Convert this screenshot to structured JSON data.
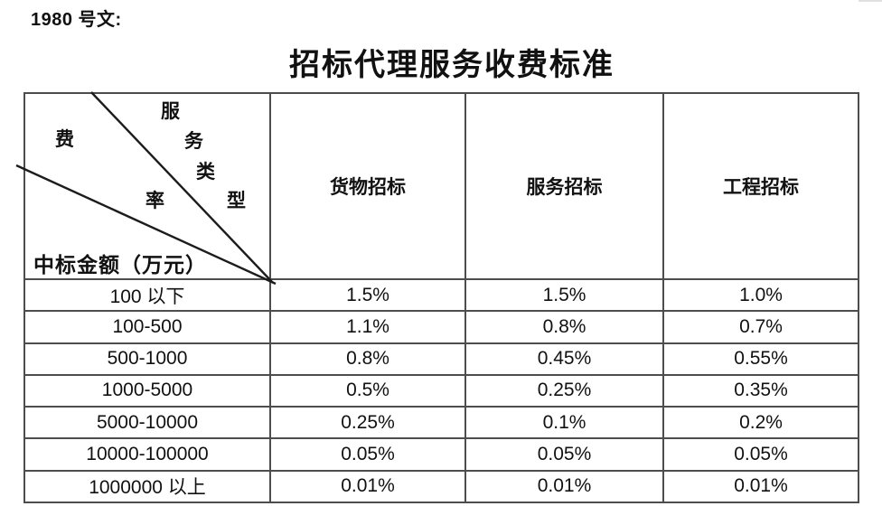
{
  "page": {
    "doc_label": "1980 号文:",
    "title": "招标代理服务收费标准"
  },
  "table": {
    "corner": {
      "fee_char": "费",
      "rate_char": "率",
      "type_chars": [
        "服",
        "务",
        "类",
        "型"
      ],
      "row_axis_label": "中标金额（万元）"
    },
    "columns": [
      "货物招标",
      "服务招标",
      "工程招标"
    ],
    "rows": [
      {
        "range": "100 以下",
        "values": [
          "1.5%",
          "1.5%",
          "1.0%"
        ]
      },
      {
        "range": "100-500",
        "values": [
          "1.1%",
          "0.8%",
          "0.7%"
        ]
      },
      {
        "range": "500-1000",
        "values": [
          "0.8%",
          "0.45%",
          "0.55%"
        ]
      },
      {
        "range": "1000-5000",
        "values": [
          "0.5%",
          "0.25%",
          "0.35%"
        ]
      },
      {
        "range": "5000-10000",
        "values": [
          "0.25%",
          "0.1%",
          "0.2%"
        ]
      },
      {
        "range": "10000-100000",
        "values": [
          "0.05%",
          "0.05%",
          "0.05%"
        ]
      },
      {
        "range": "1000000 以上",
        "values": [
          "0.01%",
          "0.01%",
          "0.01%"
        ]
      }
    ]
  },
  "colors": {
    "border": "#4d4d4d",
    "text": "#111111",
    "background": "#ffffff"
  }
}
